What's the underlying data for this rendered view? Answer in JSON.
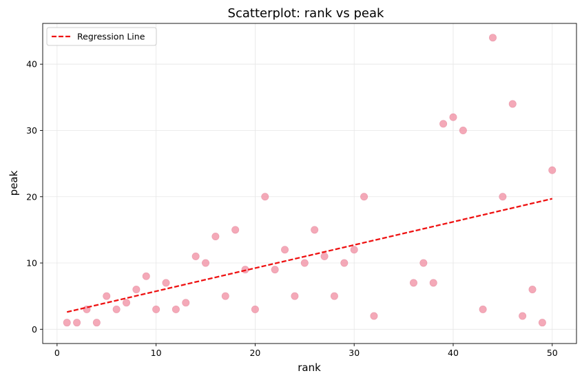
{
  "chart_data": {
    "type": "scatter",
    "title": "Scatterplot: rank vs peak",
    "xlabel": "rank",
    "ylabel": "peak",
    "xlim": [
      -1.45,
      52.45
    ],
    "ylim": [
      -2.15,
      46.15
    ],
    "xticks": [
      0,
      10,
      20,
      30,
      40,
      50
    ],
    "yticks": [
      0,
      10,
      20,
      30,
      40
    ],
    "xtick_labels": [
      "0",
      "10",
      "20",
      "30",
      "40",
      "50"
    ],
    "ytick_labels": [
      "0",
      "10",
      "20",
      "30",
      "40"
    ],
    "grid": true,
    "legend": {
      "placement": "top-left",
      "entries": [
        "Regression Line"
      ]
    },
    "points": {
      "color": "#f08ca0",
      "x": [
        1,
        2,
        3,
        4,
        5,
        6,
        7,
        8,
        9,
        10,
        11,
        12,
        13,
        14,
        15,
        16,
        17,
        18,
        19,
        20,
        21,
        22,
        23,
        24,
        25,
        26,
        27,
        28,
        29,
        30,
        31,
        32,
        36,
        37,
        38,
        39,
        40,
        41,
        43,
        44,
        45,
        46,
        47,
        48,
        49,
        50
      ],
      "y": [
        1,
        1,
        3,
        1,
        5,
        3,
        4,
        6,
        8,
        3,
        7,
        3,
        4,
        11,
        10,
        14,
        5,
        15,
        9,
        3,
        20,
        9,
        12,
        5,
        10,
        15,
        11,
        5,
        10,
        12,
        20,
        2,
        7,
        10,
        7,
        31,
        32,
        30,
        3,
        44,
        20,
        34,
        2,
        6,
        1,
        24
      ]
    },
    "regression": {
      "name": "Regression Line",
      "color": "#ee1111",
      "x": [
        1,
        50
      ],
      "y": [
        2.6,
        19.7
      ]
    }
  }
}
